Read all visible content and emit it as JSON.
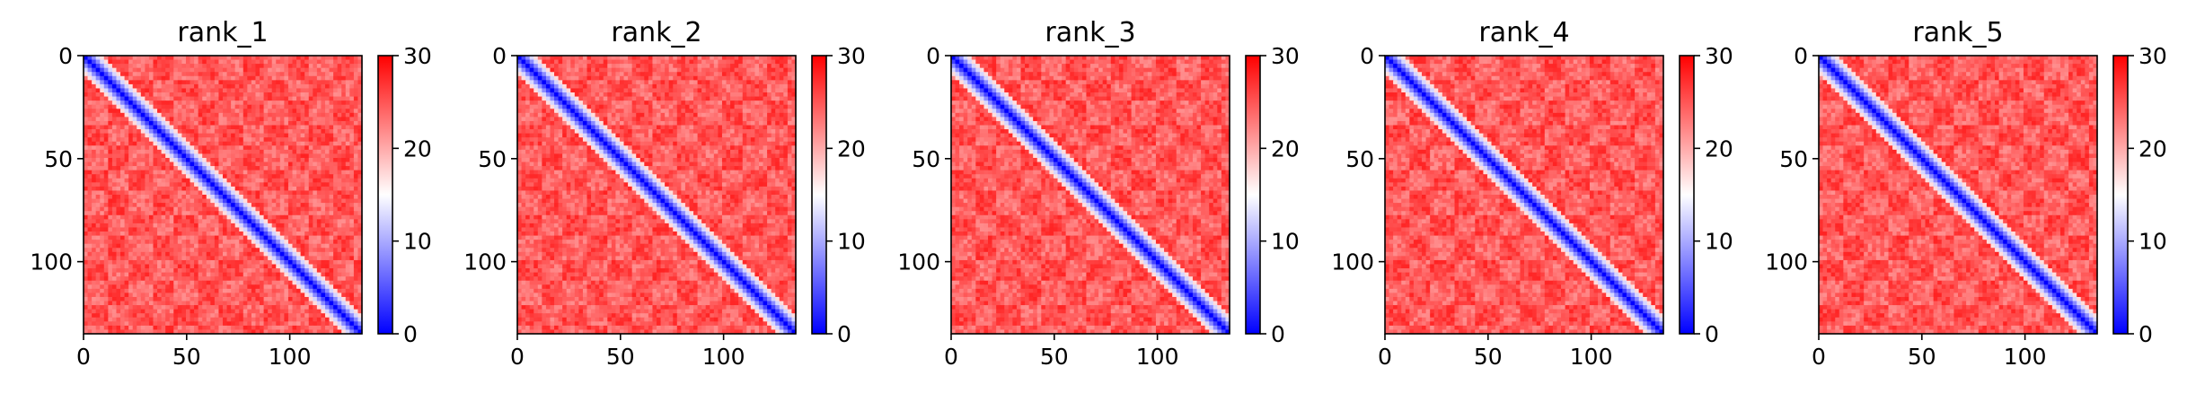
{
  "chart_data": [
    {
      "type": "heatmap",
      "title": "rank_1",
      "matrix_size": 136,
      "xlim": [
        0,
        135
      ],
      "ylim": [
        135,
        0
      ],
      "xticks": [
        0,
        50,
        100
      ],
      "yticks": [
        0,
        50,
        100
      ],
      "colorbar": {
        "range": [
          0,
          30
        ],
        "ticks": [
          0,
          10,
          20,
          30
        ],
        "colormap": "bwr",
        "colors": [
          "#0000ff",
          "#ffffff",
          "#ff0000"
        ]
      },
      "description_values": {
        "diagonal_value": 0,
        "background_value": 30
      }
    },
    {
      "type": "heatmap",
      "title": "rank_2",
      "matrix_size": 136,
      "xlim": [
        0,
        135
      ],
      "ylim": [
        135,
        0
      ],
      "xticks": [
        0,
        50,
        100
      ],
      "yticks": [
        0,
        50,
        100
      ],
      "colorbar": {
        "range": [
          0,
          30
        ],
        "ticks": [
          0,
          10,
          20,
          30
        ],
        "colormap": "bwr",
        "colors": [
          "#0000ff",
          "#ffffff",
          "#ff0000"
        ]
      },
      "description_values": {
        "diagonal_value": 0,
        "background_value": 30
      }
    },
    {
      "type": "heatmap",
      "title": "rank_3",
      "matrix_size": 136,
      "xlim": [
        0,
        135
      ],
      "ylim": [
        135,
        0
      ],
      "xticks": [
        0,
        50,
        100
      ],
      "yticks": [
        0,
        50,
        100
      ],
      "colorbar": {
        "range": [
          0,
          30
        ],
        "ticks": [
          0,
          10,
          20,
          30
        ],
        "colormap": "bwr",
        "colors": [
          "#0000ff",
          "#ffffff",
          "#ff0000"
        ]
      },
      "description_values": {
        "diagonal_value": 0,
        "background_value": 30
      }
    },
    {
      "type": "heatmap",
      "title": "rank_4",
      "matrix_size": 136,
      "xlim": [
        0,
        135
      ],
      "ylim": [
        135,
        0
      ],
      "xticks": [
        0,
        50,
        100
      ],
      "yticks": [
        0,
        50,
        100
      ],
      "colorbar": {
        "range": [
          0,
          30
        ],
        "ticks": [
          0,
          10,
          20,
          30
        ],
        "colormap": "bwr",
        "colors": [
          "#0000ff",
          "#ffffff",
          "#ff0000"
        ]
      },
      "description_values": {
        "diagonal_value": 0,
        "background_value": 30
      }
    },
    {
      "type": "heatmap",
      "title": "rank_5",
      "matrix_size": 136,
      "xlim": [
        0,
        135
      ],
      "ylim": [
        135,
        0
      ],
      "xticks": [
        0,
        50,
        100
      ],
      "yticks": [
        0,
        50,
        100
      ],
      "colorbar": {
        "range": [
          0,
          30
        ],
        "ticks": [
          0,
          10,
          20,
          30
        ],
        "colormap": "bwr",
        "colors": [
          "#0000ff",
          "#ffffff",
          "#ff0000"
        ]
      },
      "description_values": {
        "diagonal_value": 0,
        "background_value": 30
      }
    }
  ]
}
